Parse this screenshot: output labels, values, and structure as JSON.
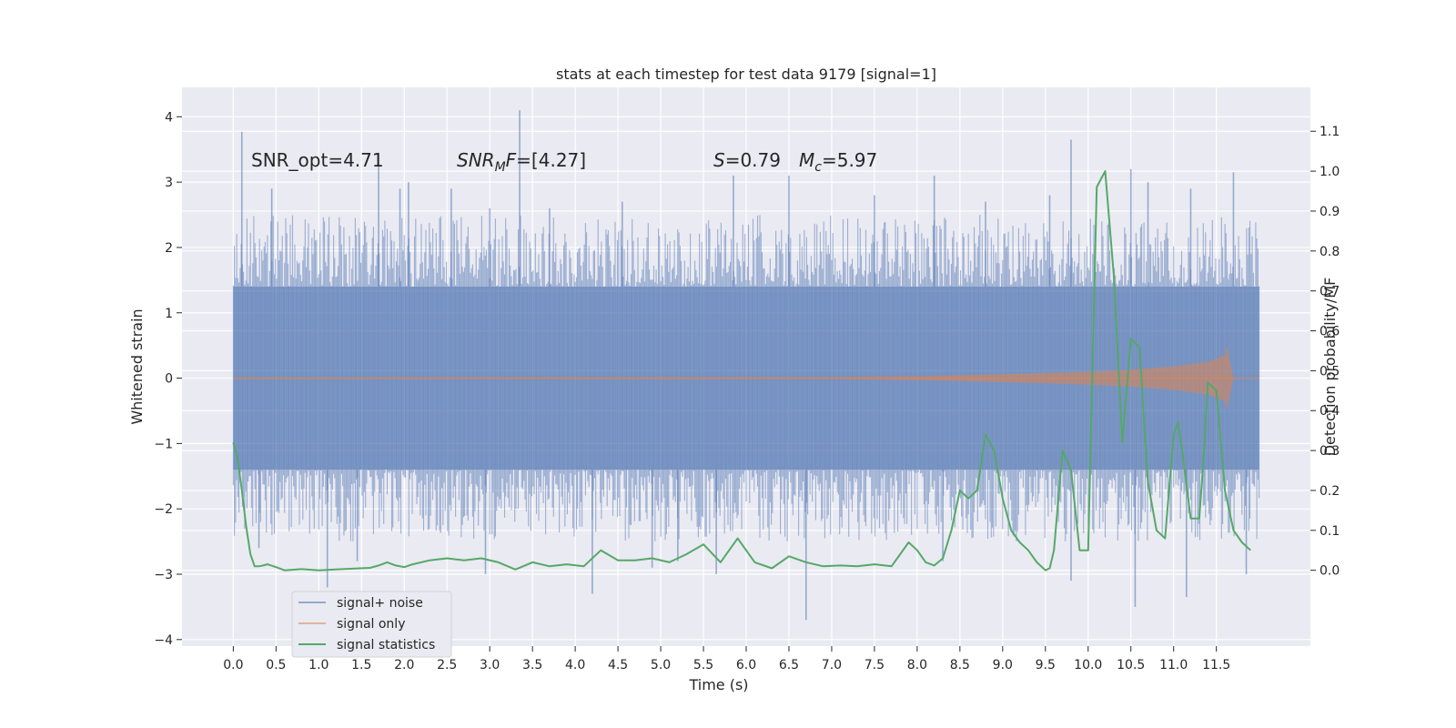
{
  "chart_data": {
    "type": "line",
    "title": "stats at each timestep for test data 9179 [signal=1]",
    "xlabel": "Time (s)",
    "ylabel": "Whitened strain",
    "y2label": "Detection probability/MF",
    "xlim": [
      -0.6,
      12.6
    ],
    "ylim": [
      -4.1,
      4.45
    ],
    "y2lim": [
      -0.19,
      1.21
    ],
    "x_ticks": [
      0.0,
      0.5,
      1.0,
      1.5,
      2.0,
      2.5,
      3.0,
      3.5,
      4.0,
      4.5,
      5.0,
      5.5,
      6.0,
      6.5,
      7.0,
      7.5,
      8.0,
      8.5,
      9.0,
      9.5,
      10.0,
      10.5,
      11.0,
      11.5
    ],
    "x_tick_labels": [
      "0.0",
      "0.5",
      "1.0",
      "1.5",
      "2.0",
      "2.5",
      "3.0",
      "3.5",
      "4.0",
      "4.5",
      "5.0",
      "5.5",
      "6.0",
      "6.5",
      "7.0",
      "7.5",
      "8.0",
      "8.5",
      "9.0",
      "9.5",
      "10.0",
      "10.5",
      "11.0",
      "11.5"
    ],
    "y_ticks": [
      -4,
      -3,
      -2,
      -1,
      0,
      1,
      2,
      3,
      4
    ],
    "y_tick_labels": [
      "−4",
      "−3",
      "−2",
      "−1",
      "0",
      "1",
      "2",
      "3",
      "4"
    ],
    "y2_ticks": [
      0.0,
      0.1,
      0.2,
      0.3,
      0.4,
      0.5,
      0.6,
      0.7,
      0.8,
      0.9,
      1.0,
      1.1
    ],
    "y2_tick_labels": [
      "0.0",
      "0.1",
      "0.2",
      "0.3",
      "0.4",
      "0.5",
      "0.6",
      "0.7",
      "0.8",
      "0.9",
      "1.0",
      "1.1"
    ],
    "grid": true,
    "annotations": {
      "snr_opt": "SNR_opt=4.71",
      "snr_mf_var": "SNR",
      "snr_mf_sub": "M",
      "snr_mf_tail": "F",
      "snr_mf_value": "=[4.27]",
      "s_var": "S",
      "s_value": "=0.79",
      "mc_var": "M",
      "mc_sub": "c",
      "mc_value": "=5.97"
    },
    "legend": {
      "position": "lower-left",
      "entries": [
        "signal+ noise",
        "signal only",
        "signal statistics"
      ]
    },
    "series": [
      {
        "name": "signal+ noise",
        "color": "#4c72b0",
        "axis": "left",
        "t_start": 0.0,
        "t_end": 12.0,
        "band_upper": 1.4,
        "band_lower": -1.4,
        "upper_spikes": [
          [
            0.1,
            3.77
          ],
          [
            0.45,
            2.9
          ],
          [
            1.7,
            3.45
          ],
          [
            1.95,
            2.9
          ],
          [
            2.05,
            3.0
          ],
          [
            2.55,
            2.9
          ],
          [
            3.0,
            2.6
          ],
          [
            3.35,
            4.1
          ],
          [
            3.7,
            2.6
          ],
          [
            4.55,
            2.7
          ],
          [
            5.85,
            3.1
          ],
          [
            6.5,
            3.1
          ],
          [
            7.5,
            2.8
          ],
          [
            8.2,
            3.1
          ],
          [
            8.8,
            2.7
          ],
          [
            9.55,
            2.8
          ],
          [
            9.8,
            3.65
          ],
          [
            10.5,
            3.2
          ],
          [
            10.7,
            3.0
          ],
          [
            11.2,
            2.9
          ],
          [
            11.7,
            3.15
          ]
        ],
        "lower_spikes": [
          [
            0.3,
            -2.6
          ],
          [
            1.1,
            -3.2
          ],
          [
            1.45,
            -2.8
          ],
          [
            2.95,
            -3.0
          ],
          [
            4.2,
            -3.3
          ],
          [
            4.9,
            -2.9
          ],
          [
            5.2,
            -2.8
          ],
          [
            5.65,
            -3.0
          ],
          [
            6.7,
            -3.7
          ],
          [
            8.3,
            -2.8
          ],
          [
            9.8,
            -3.1
          ],
          [
            10.55,
            -3.5
          ],
          [
            11.15,
            -3.35
          ],
          [
            11.85,
            -3.0
          ]
        ]
      },
      {
        "name": "signal only",
        "color": "#dd8452",
        "axis": "left",
        "t": [
          0.0,
          7.0,
          8.0,
          9.0,
          10.0,
          10.5,
          11.0,
          11.4,
          11.6,
          11.62,
          11.7,
          12.0
        ],
        "amplitude": [
          0.01,
          0.015,
          0.03,
          0.06,
          0.1,
          0.13,
          0.18,
          0.25,
          0.35,
          0.5,
          0.0,
          0.0
        ]
      },
      {
        "name": "signal statistics",
        "color": "#55a868",
        "axis": "right",
        "t": [
          0.0,
          0.05,
          0.1,
          0.15,
          0.2,
          0.25,
          0.3,
          0.35,
          0.4,
          0.5,
          0.6,
          0.8,
          1.0,
          1.2,
          1.4,
          1.6,
          1.7,
          1.8,
          1.9,
          2.0,
          2.1,
          2.3,
          2.5,
          2.7,
          2.9,
          3.1,
          3.3,
          3.5,
          3.7,
          3.9,
          4.1,
          4.3,
          4.5,
          4.7,
          4.9,
          5.1,
          5.3,
          5.5,
          5.7,
          5.9,
          6.1,
          6.3,
          6.5,
          6.7,
          6.9,
          7.1,
          7.3,
          7.5,
          7.7,
          7.9,
          8.0,
          8.1,
          8.2,
          8.3,
          8.4,
          8.5,
          8.6,
          8.7,
          8.8,
          8.9,
          9.0,
          9.1,
          9.2,
          9.3,
          9.4,
          9.5,
          9.55,
          9.6,
          9.7,
          9.8,
          9.9,
          10.0,
          10.1,
          10.15,
          10.2,
          10.3,
          10.4,
          10.5,
          10.55,
          10.6,
          10.7,
          10.8,
          10.9,
          11.0,
          11.05,
          11.1,
          11.2,
          11.3,
          11.35,
          11.4,
          11.5,
          11.6,
          11.7,
          11.8,
          11.9
        ],
        "values": [
          0.32,
          0.28,
          0.2,
          0.11,
          0.04,
          0.01,
          0.01,
          0.012,
          0.015,
          0.008,
          0.0,
          0.003,
          0.0,
          0.002,
          0.004,
          0.006,
          0.012,
          0.02,
          0.012,
          0.008,
          0.015,
          0.025,
          0.03,
          0.025,
          0.03,
          0.02,
          0.002,
          0.02,
          0.01,
          0.015,
          0.01,
          0.05,
          0.025,
          0.025,
          0.03,
          0.02,
          0.04,
          0.065,
          0.02,
          0.08,
          0.02,
          0.005,
          0.035,
          0.02,
          0.01,
          0.012,
          0.01,
          0.015,
          0.01,
          0.07,
          0.05,
          0.02,
          0.012,
          0.03,
          0.1,
          0.2,
          0.18,
          0.2,
          0.34,
          0.3,
          0.18,
          0.1,
          0.07,
          0.05,
          0.02,
          0.0,
          0.005,
          0.05,
          0.3,
          0.25,
          0.05,
          0.05,
          0.96,
          0.98,
          1.0,
          0.74,
          0.32,
          0.58,
          0.57,
          0.56,
          0.22,
          0.1,
          0.08,
          0.34,
          0.37,
          0.3,
          0.13,
          0.13,
          0.28,
          0.47,
          0.45,
          0.2,
          0.1,
          0.07,
          0.05
        ]
      }
    ]
  }
}
